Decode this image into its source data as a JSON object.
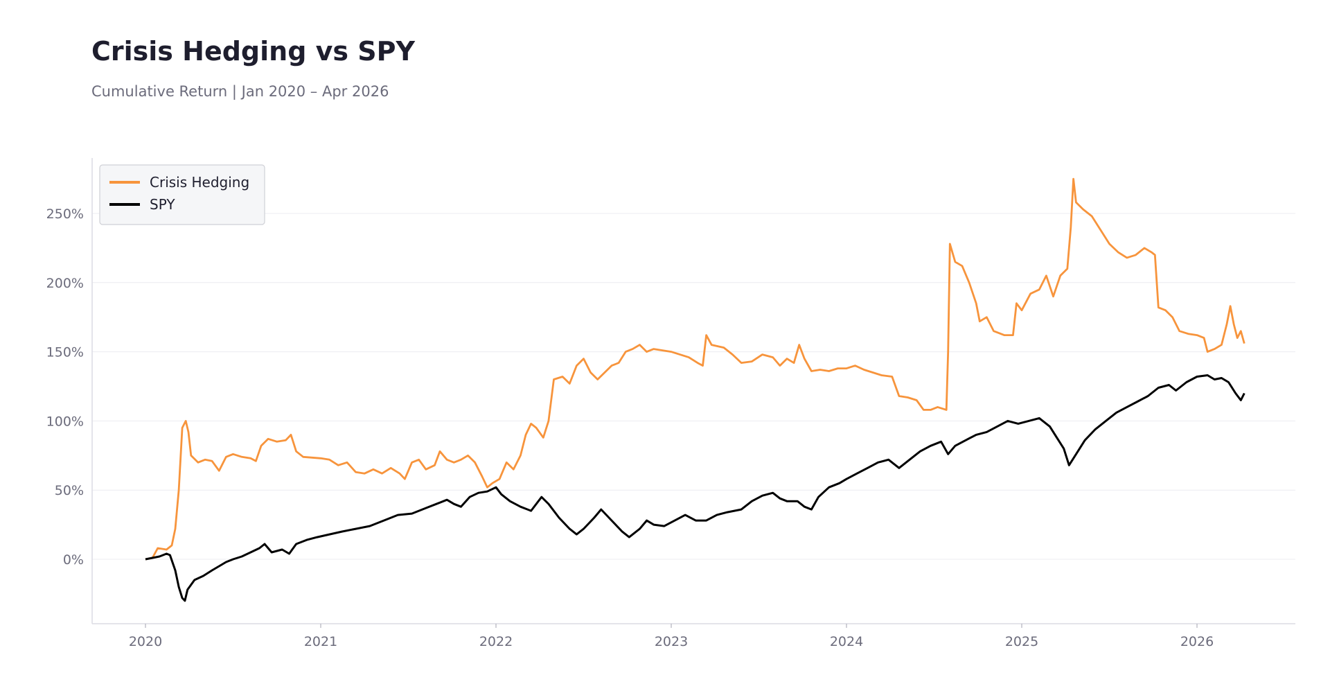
{
  "header": {
    "title": "Crisis Hedging vs SPY",
    "subtitle": "Cumulative Return | Jan 2020 – Apr 2026"
  },
  "chart_data": {
    "type": "line",
    "title": "Crisis Hedging vs SPY",
    "subtitle": "Cumulative Return | Jan 2020 – Apr 2026",
    "xlabel": "",
    "ylabel": "",
    "xlim": [
      2019.75,
      2026.5
    ],
    "ylim": [
      -45,
      290
    ],
    "x_ticks": [
      2020,
      2021,
      2022,
      2023,
      2024,
      2025,
      2026
    ],
    "x_tick_labels": [
      "2020",
      "2021",
      "2022",
      "2023",
      "2024",
      "2025",
      "2026"
    ],
    "y_ticks": [
      0,
      50,
      100,
      150,
      200,
      250
    ],
    "y_tick_labels": [
      "0%",
      "50%",
      "100%",
      "150%",
      "200%",
      "250%"
    ],
    "grid": "horizontal",
    "legend_position": "top-left",
    "series": [
      {
        "name": "Crisis Hedging",
        "color": "#f7943c",
        "points": [
          [
            2020.0,
            0
          ],
          [
            2020.04,
            1
          ],
          [
            2020.07,
            8
          ],
          [
            2020.12,
            7
          ],
          [
            2020.15,
            10
          ],
          [
            2020.17,
            22
          ],
          [
            2020.19,
            50
          ],
          [
            2020.21,
            95
          ],
          [
            2020.23,
            100
          ],
          [
            2020.245,
            92
          ],
          [
            2020.26,
            75
          ],
          [
            2020.3,
            70
          ],
          [
            2020.34,
            72
          ],
          [
            2020.38,
            71
          ],
          [
            2020.42,
            64
          ],
          [
            2020.46,
            74
          ],
          [
            2020.5,
            76
          ],
          [
            2020.55,
            74
          ],
          [
            2020.6,
            73
          ],
          [
            2020.63,
            71
          ],
          [
            2020.66,
            82
          ],
          [
            2020.7,
            87
          ],
          [
            2020.75,
            85
          ],
          [
            2020.8,
            86
          ],
          [
            2020.83,
            90
          ],
          [
            2020.86,
            78
          ],
          [
            2020.9,
            74
          ],
          [
            2021.0,
            73
          ],
          [
            2021.05,
            72
          ],
          [
            2021.1,
            68
          ],
          [
            2021.15,
            70
          ],
          [
            2021.2,
            63
          ],
          [
            2021.25,
            62
          ],
          [
            2021.3,
            65
          ],
          [
            2021.35,
            62
          ],
          [
            2021.4,
            66
          ],
          [
            2021.45,
            62
          ],
          [
            2021.48,
            58
          ],
          [
            2021.52,
            70
          ],
          [
            2021.56,
            72
          ],
          [
            2021.6,
            65
          ],
          [
            2021.65,
            68
          ],
          [
            2021.68,
            78
          ],
          [
            2021.72,
            72
          ],
          [
            2021.76,
            70
          ],
          [
            2021.8,
            72
          ],
          [
            2021.84,
            75
          ],
          [
            2021.88,
            70
          ],
          [
            2021.92,
            60
          ],
          [
            2021.95,
            52
          ],
          [
            2021.98,
            55
          ],
          [
            2022.02,
            58
          ],
          [
            2022.06,
            70
          ],
          [
            2022.1,
            65
          ],
          [
            2022.14,
            75
          ],
          [
            2022.17,
            90
          ],
          [
            2022.2,
            98
          ],
          [
            2022.23,
            95
          ],
          [
            2022.27,
            88
          ],
          [
            2022.3,
            100
          ],
          [
            2022.33,
            130
          ],
          [
            2022.38,
            132
          ],
          [
            2022.42,
            127
          ],
          [
            2022.46,
            140
          ],
          [
            2022.5,
            145
          ],
          [
            2022.54,
            135
          ],
          [
            2022.58,
            130
          ],
          [
            2022.62,
            135
          ],
          [
            2022.66,
            140
          ],
          [
            2022.7,
            142
          ],
          [
            2022.74,
            150
          ],
          [
            2022.78,
            152
          ],
          [
            2022.82,
            155
          ],
          [
            2022.86,
            150
          ],
          [
            2022.9,
            152
          ],
          [
            2022.95,
            151
          ],
          [
            2023.0,
            150
          ],
          [
            2023.05,
            148
          ],
          [
            2023.1,
            146
          ],
          [
            2023.15,
            142
          ],
          [
            2023.18,
            140
          ],
          [
            2023.2,
            162
          ],
          [
            2023.23,
            155
          ],
          [
            2023.3,
            153
          ],
          [
            2023.35,
            148
          ],
          [
            2023.4,
            142
          ],
          [
            2023.46,
            143
          ],
          [
            2023.52,
            148
          ],
          [
            2023.58,
            146
          ],
          [
            2023.62,
            140
          ],
          [
            2023.66,
            145
          ],
          [
            2023.7,
            142
          ],
          [
            2023.73,
            155
          ],
          [
            2023.76,
            145
          ],
          [
            2023.8,
            136
          ],
          [
            2023.85,
            137
          ],
          [
            2023.9,
            136
          ],
          [
            2023.95,
            138
          ],
          [
            2024.0,
            138
          ],
          [
            2024.05,
            140
          ],
          [
            2024.1,
            137
          ],
          [
            2024.15,
            135
          ],
          [
            2024.2,
            133
          ],
          [
            2024.26,
            132
          ],
          [
            2024.3,
            118
          ],
          [
            2024.35,
            117
          ],
          [
            2024.4,
            115
          ],
          [
            2024.44,
            108
          ],
          [
            2024.48,
            108
          ],
          [
            2024.52,
            110
          ],
          [
            2024.57,
            108
          ],
          [
            2024.58,
            150
          ],
          [
            2024.59,
            228
          ],
          [
            2024.62,
            215
          ],
          [
            2024.66,
            212
          ],
          [
            2024.7,
            200
          ],
          [
            2024.74,
            185
          ],
          [
            2024.76,
            172
          ],
          [
            2024.8,
            175
          ],
          [
            2024.84,
            165
          ],
          [
            2024.9,
            162
          ],
          [
            2024.95,
            162
          ],
          [
            2024.97,
            185
          ],
          [
            2025.0,
            180
          ],
          [
            2025.05,
            192
          ],
          [
            2025.1,
            195
          ],
          [
            2025.14,
            205
          ],
          [
            2025.18,
            190
          ],
          [
            2025.22,
            205
          ],
          [
            2025.26,
            210
          ],
          [
            2025.28,
            240
          ],
          [
            2025.295,
            275
          ],
          [
            2025.31,
            258
          ],
          [
            2025.35,
            253
          ],
          [
            2025.4,
            248
          ],
          [
            2025.45,
            238
          ],
          [
            2025.5,
            228
          ],
          [
            2025.55,
            222
          ],
          [
            2025.6,
            218
          ],
          [
            2025.65,
            220
          ],
          [
            2025.7,
            225
          ],
          [
            2025.74,
            222
          ],
          [
            2025.76,
            220
          ],
          [
            2025.78,
            182
          ],
          [
            2025.82,
            180
          ],
          [
            2025.86,
            175
          ],
          [
            2025.9,
            165
          ],
          [
            2025.95,
            163
          ],
          [
            2026.0,
            162
          ],
          [
            2026.04,
            160
          ],
          [
            2026.06,
            150
          ],
          [
            2026.1,
            152
          ],
          [
            2026.14,
            155
          ],
          [
            2026.17,
            170
          ],
          [
            2026.19,
            183
          ],
          [
            2026.21,
            170
          ],
          [
            2026.23,
            160
          ],
          [
            2026.25,
            165
          ],
          [
            2026.27,
            156
          ]
        ]
      },
      {
        "name": "SPY",
        "color": "#000000",
        "points": [
          [
            2020.0,
            0
          ],
          [
            2020.04,
            1
          ],
          [
            2020.08,
            2
          ],
          [
            2020.12,
            4
          ],
          [
            2020.14,
            3
          ],
          [
            2020.17,
            -8
          ],
          [
            2020.19,
            -20
          ],
          [
            2020.21,
            -28
          ],
          [
            2020.225,
            -30
          ],
          [
            2020.24,
            -22
          ],
          [
            2020.28,
            -15
          ],
          [
            2020.33,
            -12
          ],
          [
            2020.38,
            -8
          ],
          [
            2020.42,
            -5
          ],
          [
            2020.46,
            -2
          ],
          [
            2020.5,
            0
          ],
          [
            2020.55,
            2
          ],
          [
            2020.6,
            5
          ],
          [
            2020.65,
            8
          ],
          [
            2020.68,
            11
          ],
          [
            2020.72,
            5
          ],
          [
            2020.78,
            7
          ],
          [
            2020.82,
            4
          ],
          [
            2020.86,
            11
          ],
          [
            2020.92,
            14
          ],
          [
            2020.98,
            16
          ],
          [
            2021.05,
            18
          ],
          [
            2021.12,
            20
          ],
          [
            2021.2,
            22
          ],
          [
            2021.28,
            24
          ],
          [
            2021.36,
            28
          ],
          [
            2021.44,
            32
          ],
          [
            2021.52,
            33
          ],
          [
            2021.6,
            37
          ],
          [
            2021.66,
            40
          ],
          [
            2021.72,
            43
          ],
          [
            2021.76,
            40
          ],
          [
            2021.8,
            38
          ],
          [
            2021.85,
            45
          ],
          [
            2021.9,
            48
          ],
          [
            2021.95,
            49
          ],
          [
            2022.0,
            52
          ],
          [
            2022.03,
            47
          ],
          [
            2022.08,
            42
          ],
          [
            2022.14,
            38
          ],
          [
            2022.2,
            35
          ],
          [
            2022.26,
            45
          ],
          [
            2022.3,
            40
          ],
          [
            2022.36,
            30
          ],
          [
            2022.42,
            22
          ],
          [
            2022.46,
            18
          ],
          [
            2022.5,
            22
          ],
          [
            2022.56,
            30
          ],
          [
            2022.6,
            36
          ],
          [
            2022.66,
            28
          ],
          [
            2022.72,
            20
          ],
          [
            2022.76,
            16
          ],
          [
            2022.82,
            22
          ],
          [
            2022.86,
            28
          ],
          [
            2022.9,
            25
          ],
          [
            2022.96,
            24
          ],
          [
            2023.02,
            28
          ],
          [
            2023.08,
            32
          ],
          [
            2023.14,
            28
          ],
          [
            2023.2,
            28
          ],
          [
            2023.26,
            32
          ],
          [
            2023.32,
            34
          ],
          [
            2023.4,
            36
          ],
          [
            2023.46,
            42
          ],
          [
            2023.52,
            46
          ],
          [
            2023.58,
            48
          ],
          [
            2023.62,
            44
          ],
          [
            2023.66,
            42
          ],
          [
            2023.72,
            42
          ],
          [
            2023.76,
            38
          ],
          [
            2023.8,
            36
          ],
          [
            2023.84,
            45
          ],
          [
            2023.9,
            52
          ],
          [
            2023.96,
            55
          ],
          [
            2024.0,
            58
          ],
          [
            2024.06,
            62
          ],
          [
            2024.12,
            66
          ],
          [
            2024.18,
            70
          ],
          [
            2024.24,
            72
          ],
          [
            2024.3,
            66
          ],
          [
            2024.36,
            72
          ],
          [
            2024.42,
            78
          ],
          [
            2024.48,
            82
          ],
          [
            2024.54,
            85
          ],
          [
            2024.58,
            76
          ],
          [
            2024.62,
            82
          ],
          [
            2024.68,
            86
          ],
          [
            2024.74,
            90
          ],
          [
            2024.8,
            92
          ],
          [
            2024.86,
            96
          ],
          [
            2024.92,
            100
          ],
          [
            2024.98,
            98
          ],
          [
            2025.04,
            100
          ],
          [
            2025.1,
            102
          ],
          [
            2025.16,
            96
          ],
          [
            2025.2,
            88
          ],
          [
            2025.24,
            80
          ],
          [
            2025.27,
            68
          ],
          [
            2025.29,
            72
          ],
          [
            2025.32,
            78
          ],
          [
            2025.36,
            86
          ],
          [
            2025.42,
            94
          ],
          [
            2025.48,
            100
          ],
          [
            2025.54,
            106
          ],
          [
            2025.6,
            110
          ],
          [
            2025.66,
            114
          ],
          [
            2025.72,
            118
          ],
          [
            2025.78,
            124
          ],
          [
            2025.84,
            126
          ],
          [
            2025.88,
            122
          ],
          [
            2025.94,
            128
          ],
          [
            2026.0,
            132
          ],
          [
            2026.06,
            133
          ],
          [
            2026.1,
            130
          ],
          [
            2026.14,
            131
          ],
          [
            2026.18,
            128
          ],
          [
            2026.22,
            120
          ],
          [
            2026.25,
            115
          ],
          [
            2026.27,
            120
          ]
        ]
      }
    ]
  }
}
